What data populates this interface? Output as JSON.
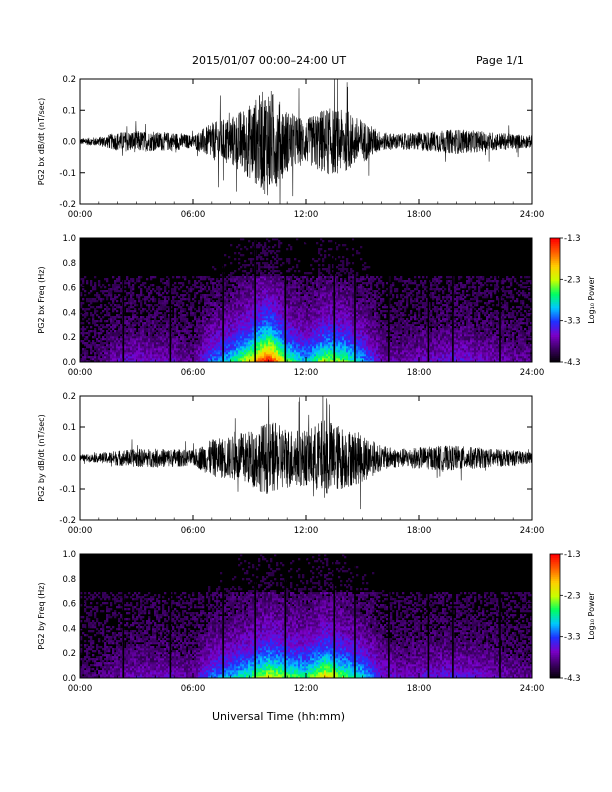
{
  "header": {
    "date_range": "2015/01/07  00:00–24:00 UT",
    "page": "Page 1/1"
  },
  "xaxis_title": "Universal Time (hh:mm)",
  "colors": {
    "waveform": "#000000",
    "colormap": [
      "#000000",
      "#3a0060",
      "#7b00c8",
      "#2030ff",
      "#00c8ff",
      "#00ff60",
      "#c8ff00",
      "#ffd000",
      "#ff6000",
      "#ff0000"
    ]
  },
  "chart_data": [
    {
      "type": "line",
      "ylabel": "PG2 bx dB/dt (nT/sec)",
      "x_ticks": [
        "00:00",
        "06:00",
        "12:00",
        "18:00",
        "24:00"
      ],
      "xlim": [
        0,
        24
      ],
      "ylim": [
        -0.2,
        0.2
      ],
      "y_ticks": [
        "0.2",
        "0.1",
        "0.0",
        "-0.1",
        "-0.2"
      ],
      "x": [
        0,
        1,
        2,
        3,
        4,
        5,
        6,
        7,
        8,
        9,
        10,
        11,
        12,
        13,
        14,
        15,
        16,
        17,
        18,
        19,
        20,
        21,
        22,
        23,
        24
      ],
      "amplitude": [
        0.01,
        0.015,
        0.03,
        0.035,
        0.03,
        0.03,
        0.02,
        0.06,
        0.08,
        0.12,
        0.18,
        0.1,
        0.07,
        0.11,
        0.1,
        0.07,
        0.03,
        0.025,
        0.03,
        0.035,
        0.04,
        0.035,
        0.03,
        0.025,
        0.02
      ]
    },
    {
      "type": "heatmap",
      "ylabel": "PG2 bx Freq (Hz)",
      "x_ticks": [
        "00:00",
        "06:00",
        "12:00",
        "18:00",
        "24:00"
      ],
      "xlim": [
        0,
        24
      ],
      "ylim": [
        0.0,
        1.0
      ],
      "y_ticks": [
        "1.0",
        "0.8",
        "0.6",
        "0.4",
        "0.2",
        "0.0"
      ],
      "colorbar": {
        "label": "Log₁₀ Power",
        "ticks": [
          "-1.3",
          "-2.3",
          "-3.3",
          "-4.3"
        ],
        "range": [
          -4.3,
          -1.3
        ]
      },
      "gap_hours": [
        2.3,
        4.8,
        7.6,
        9.3,
        10.9,
        13.5,
        14.6,
        16.4,
        18.5,
        19.8,
        22.3
      ]
    },
    {
      "type": "line",
      "ylabel": "PG2 by dB/dt (nT/sec)",
      "x_ticks": [
        "00:00",
        "06:00",
        "12:00",
        "18:00",
        "24:00"
      ],
      "xlim": [
        0,
        24
      ],
      "ylim": [
        -0.2,
        0.2
      ],
      "y_ticks": [
        "0.2",
        "0.1",
        "0.0",
        "-0.1",
        "-0.2"
      ],
      "x": [
        0,
        1,
        2,
        3,
        4,
        5,
        6,
        7,
        8,
        9,
        10,
        11,
        12,
        13,
        14,
        15,
        16,
        17,
        18,
        19,
        20,
        21,
        22,
        23,
        24
      ],
      "amplitude": [
        0.01,
        0.015,
        0.025,
        0.03,
        0.03,
        0.03,
        0.025,
        0.06,
        0.07,
        0.09,
        0.12,
        0.1,
        0.09,
        0.13,
        0.1,
        0.08,
        0.04,
        0.03,
        0.035,
        0.04,
        0.04,
        0.035,
        0.03,
        0.025,
        0.02
      ]
    },
    {
      "type": "heatmap",
      "ylabel": "PG2 by Freq (Hz)",
      "x_ticks": [
        "00:00",
        "06:00",
        "12:00",
        "18:00",
        "24:00"
      ],
      "xlim": [
        0,
        24
      ],
      "ylim": [
        0.0,
        1.0
      ],
      "y_ticks": [
        "1.0",
        "0.8",
        "0.6",
        "0.4",
        "0.2",
        "0.0"
      ],
      "colorbar": {
        "label": "Log₁₀ Power",
        "ticks": [
          "-1.3",
          "-2.3",
          "-3.3",
          "-4.3"
        ],
        "range": [
          -4.3,
          -1.3
        ]
      },
      "gap_hours": [
        2.3,
        4.8,
        7.6,
        9.3,
        10.9,
        13.5,
        14.6,
        16.4,
        18.5,
        19.8,
        22.3
      ]
    }
  ]
}
